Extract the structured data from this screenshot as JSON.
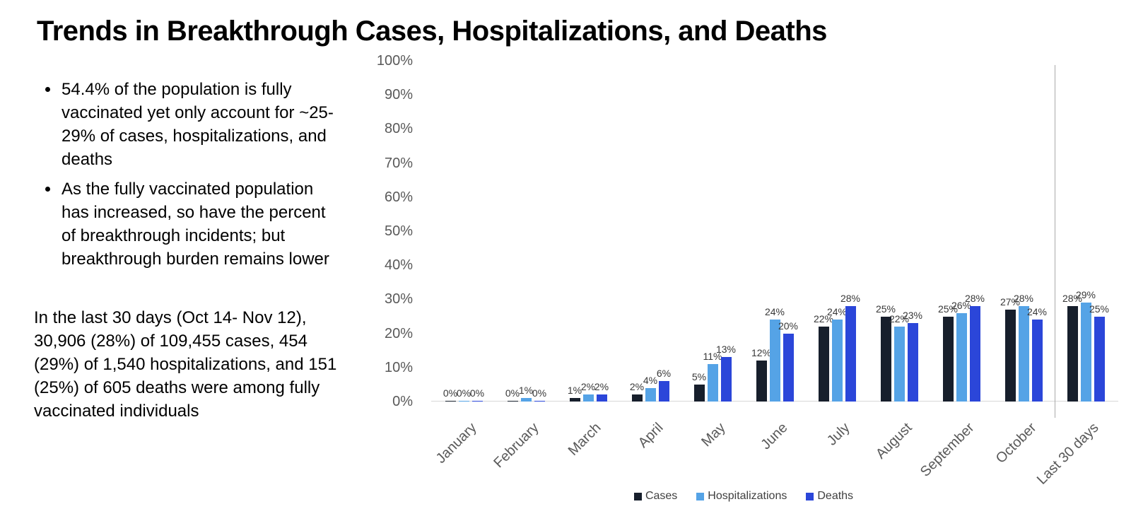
{
  "slide": {
    "title": "Trends in Breakthrough Cases, Hospitalizations, and Deaths",
    "bullets": [
      "54.4% of the population is fully vaccinated yet only account for ~25-29% of cases, hospitalizations, and deaths",
      "As the fully vaccinated population has increased, so have the percent of breakthrough incidents; but breakthrough burden remains lower"
    ],
    "summary": "In the last 30 days (Oct 14- Nov 12), 30,906 (28%) of 109,455 cases, 454 (29%) of 1,540 hospitalizations, and 151 (25%) of 605 deaths were among fully vaccinated individuals"
  },
  "chart_data": {
    "type": "bar",
    "title": "",
    "xlabel": "",
    "ylabel": "",
    "ylim": [
      0,
      100
    ],
    "yticks": [
      100,
      90,
      80,
      70,
      60,
      50,
      40,
      30,
      20,
      10,
      0
    ],
    "ytick_suffix": "%",
    "value_label_suffix": "%",
    "grid": false,
    "legend_position": "bottom",
    "separator_after_category": "October",
    "categories": [
      "January",
      "February",
      "March",
      "April",
      "May",
      "June",
      "July",
      "August",
      "September",
      "October",
      "Last 30 days"
    ],
    "series": [
      {
        "name": "Cases",
        "color": "#171f2c",
        "values": [
          0,
          0,
          1,
          2,
          5,
          12,
          22,
          25,
          25,
          27,
          28
        ]
      },
      {
        "name": "Hospitalizations",
        "color": "#55a3e6",
        "values": [
          0,
          1,
          2,
          4,
          11,
          24,
          24,
          22,
          26,
          28,
          29
        ]
      },
      {
        "name": "Deaths",
        "color": "#2b46d9",
        "values": [
          0,
          0,
          2,
          6,
          13,
          20,
          28,
          23,
          28,
          24,
          25
        ]
      }
    ]
  }
}
